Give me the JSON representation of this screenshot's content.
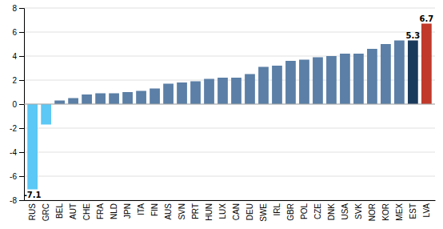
{
  "chart_data": {
    "type": "bar",
    "categories": [
      "RUS",
      "GRC",
      "BEL",
      "AUT",
      "CHE",
      "FRA",
      "NLD",
      "JPN",
      "ITA",
      "FIN",
      "AUS",
      "SVN",
      "PRT",
      "HUN",
      "LUX",
      "CAN",
      "DEU",
      "SWE",
      "IRL",
      "GBR",
      "POL",
      "CZE",
      "DNK",
      "USA",
      "SVK",
      "NOR",
      "KOR",
      "MEX",
      "EST",
      "LVA"
    ],
    "values": [
      -7.1,
      -1.7,
      0.3,
      0.5,
      0.8,
      0.9,
      0.9,
      1.0,
      1.1,
      1.3,
      1.7,
      1.8,
      1.9,
      2.1,
      2.2,
      2.2,
      2.5,
      3.1,
      3.2,
      3.6,
      3.7,
      3.9,
      4.0,
      4.2,
      4.2,
      4.6,
      5.0,
      5.3,
      5.3,
      6.7
    ],
    "colors": [
      "#5bc8f5",
      "#5bc8f5",
      "#5b7fa6",
      "#5b7fa6",
      "#5b7fa6",
      "#5b7fa6",
      "#5b7fa6",
      "#5b7fa6",
      "#5b7fa6",
      "#5b7fa6",
      "#5b7fa6",
      "#5b7fa6",
      "#5b7fa6",
      "#5b7fa6",
      "#5b7fa6",
      "#5b7fa6",
      "#5b7fa6",
      "#5b7fa6",
      "#5b7fa6",
      "#5b7fa6",
      "#5b7fa6",
      "#5b7fa6",
      "#5b7fa6",
      "#5b7fa6",
      "#5b7fa6",
      "#5b7fa6",
      "#5b7fa6",
      "#5b7fa6",
      "#1a3a5c",
      "#c0392b"
    ],
    "annotations": [
      {
        "x": "RUS",
        "y": -7.1,
        "text": "-7.1"
      },
      {
        "x": "EST",
        "y": 5.3,
        "text": "5.3"
      },
      {
        "x": "LVA",
        "y": 6.7,
        "text": "6.7"
      }
    ],
    "ylim": [
      -8,
      8
    ],
    "yticks": [
      -8,
      -6,
      -4,
      -2,
      0,
      2,
      4,
      6,
      8
    ],
    "grid": true
  }
}
